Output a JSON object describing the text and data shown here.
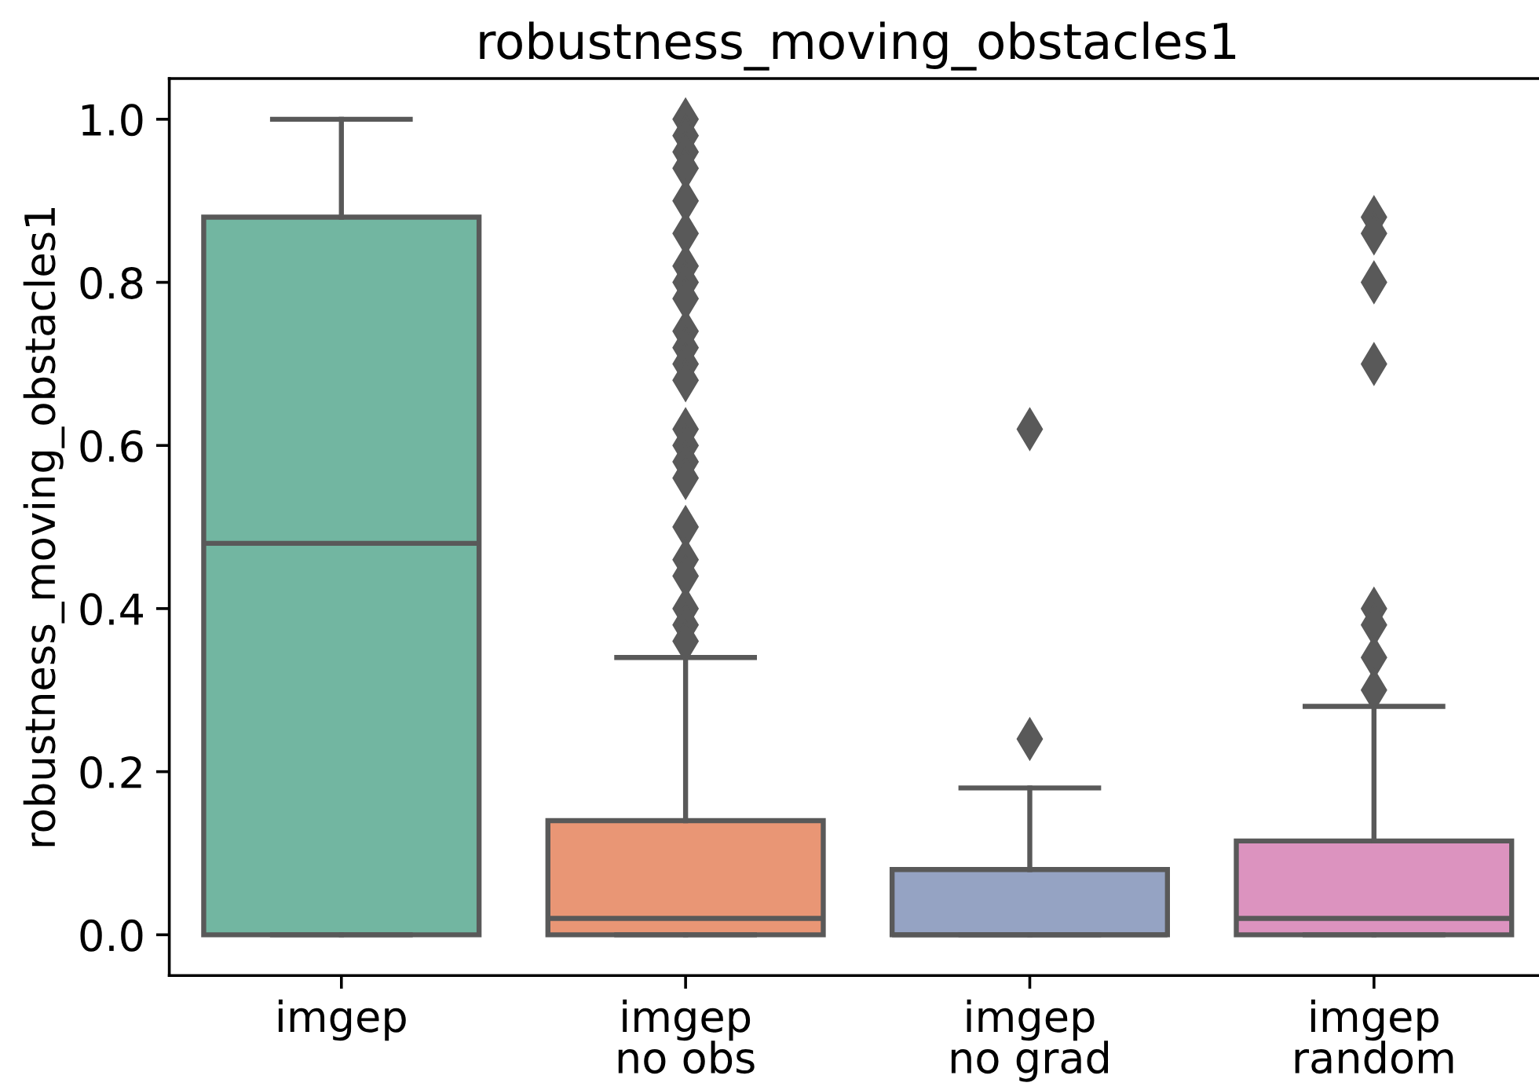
{
  "chart_data": {
    "type": "box",
    "title": "robustness_moving_obstacles1",
    "ylabel": "robustness_moving_obstacles1",
    "categories": [
      "imgep",
      "imgep\nno obs",
      "imgep\nno grad",
      "imgep\nrandom"
    ],
    "colors": [
      "#72b6a1",
      "#e99675",
      "#95a3c3",
      "#dc93bf"
    ],
    "boxes": [
      {
        "low": 0,
        "q1": 0,
        "median": 0.48,
        "q3": 0.88,
        "high": 1.0
      },
      {
        "low": 0,
        "q1": 0,
        "median": 0.02,
        "q3": 0.14,
        "high": 0.34,
        "outliers": [
          1.0,
          0.98,
          0.96,
          0.94,
          0.9,
          0.86,
          0.82,
          0.8,
          0.78,
          0.74,
          0.72,
          0.7,
          0.68,
          0.62,
          0.6,
          0.58,
          0.56,
          0.5,
          0.46,
          0.44,
          0.4,
          0.38,
          0.36
        ]
      },
      {
        "low": 0,
        "q1": 0,
        "median": 0,
        "q3": 0.08,
        "high": 0.18,
        "outliers": [
          0.62,
          0.24
        ]
      },
      {
        "low": 0,
        "q1": 0,
        "median": 0.02,
        "q3": 0.115,
        "high": 0.28,
        "outliers": [
          0.88,
          0.86,
          0.8,
          0.7,
          0.4,
          0.38,
          0.34,
          0.3
        ]
      }
    ],
    "ylim": [
      -0.05,
      1.05
    ],
    "yticks": [
      {
        "value": 0,
        "label": "0.0"
      },
      {
        "value": 0.2,
        "label": "0.2"
      },
      {
        "value": 0.4,
        "label": "0.4"
      },
      {
        "value": 0.6,
        "label": "0.6"
      },
      {
        "value": 0.8,
        "label": "0.8"
      },
      {
        "value": 1.0,
        "label": "1.0"
      }
    ],
    "marker": "diamond"
  }
}
